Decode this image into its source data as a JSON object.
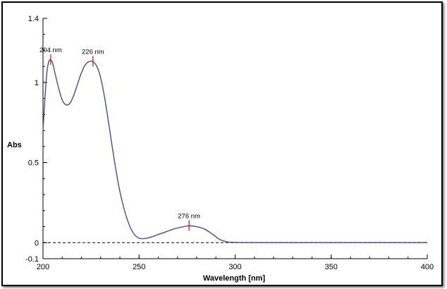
{
  "chart_data": {
    "type": "line",
    "title": "",
    "xlabel": "Wavelength [nm]",
    "ylabel": "Abs",
    "xlim": [
      200,
      400
    ],
    "ylim": [
      -0.1,
      1.4
    ],
    "x_ticks": [
      200,
      250,
      300,
      350,
      400
    ],
    "y_ticks": [
      -0.1,
      0,
      0.5,
      1,
      1.4
    ],
    "y_tick_labels": [
      "-0.1",
      "0",
      "0.5",
      "1",
      "1.4"
    ],
    "x_minor_step": 10,
    "y_minor_step": 0.1,
    "grid": false,
    "baseline": {
      "y": 0,
      "style": "dashed"
    },
    "line_color": "#4a4a9c",
    "peak_marker_color": "#e8000b",
    "series": [
      {
        "x": [
          200,
          201,
          202,
          203,
          204,
          205,
          206,
          208,
          210,
          212,
          214,
          216,
          218,
          220,
          222,
          224,
          226,
          228,
          230,
          232,
          234,
          236,
          238,
          240,
          242,
          244,
          246,
          248,
          250,
          252,
          254,
          256,
          258,
          260,
          264,
          268,
          272,
          276,
          280,
          284,
          288,
          292,
          296,
          300,
          310,
          320,
          340,
          360,
          380,
          400
        ],
        "y": [
          0.7,
          0.9,
          1.06,
          1.13,
          1.14,
          1.12,
          1.07,
          0.97,
          0.89,
          0.86,
          0.87,
          0.92,
          0.99,
          1.06,
          1.11,
          1.13,
          1.13,
          1.1,
          1.03,
          0.91,
          0.76,
          0.6,
          0.45,
          0.32,
          0.22,
          0.14,
          0.08,
          0.045,
          0.028,
          0.025,
          0.028,
          0.034,
          0.042,
          0.051,
          0.068,
          0.085,
          0.097,
          0.105,
          0.1,
          0.085,
          0.055,
          0.02,
          0.005,
          0.002,
          0.001,
          0.001,
          0.001,
          0.001,
          0.001,
          0.001
        ]
      }
    ],
    "peaks": [
      {
        "x": 204,
        "y": 1.14,
        "label": "204 nm"
      },
      {
        "x": 226,
        "y": 1.13,
        "label": "226 nm"
      },
      {
        "x": 276,
        "y": 0.105,
        "label": "276 nm"
      }
    ]
  }
}
